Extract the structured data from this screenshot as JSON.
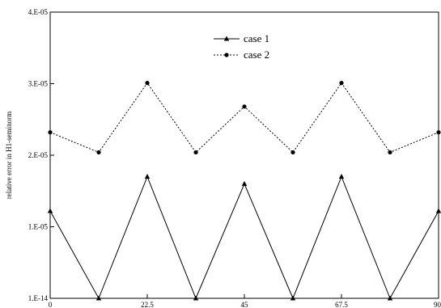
{
  "chart_data": {
    "type": "line",
    "ylabel": "relative error in H1-seminorm",
    "xlabel": "",
    "xlim": [
      0,
      90
    ],
    "ylim": [
      0,
      4e-05
    ],
    "x_ticks": [
      {
        "value": 0,
        "label": "0"
      },
      {
        "value": 22.5,
        "label": "22.5"
      },
      {
        "value": 45,
        "label": "45"
      },
      {
        "value": 67.5,
        "label": "67.5"
      },
      {
        "value": 90,
        "label": "90"
      }
    ],
    "y_ticks": [
      {
        "value": 0,
        "label": "1.E-14"
      },
      {
        "value": 1e-05,
        "label": "1.E-05"
      },
      {
        "value": 2e-05,
        "label": "2.E-05"
      },
      {
        "value": 3e-05,
        "label": "3.E-05"
      },
      {
        "value": 4e-05,
        "label": "4.E-05"
      }
    ],
    "grid": false,
    "legend_position": "top-center",
    "x": [
      0,
      11.25,
      22.5,
      33.75,
      45,
      56.25,
      67.5,
      78.75,
      90
    ],
    "series": [
      {
        "name": "case 1",
        "line_style": "solid",
        "marker": "triangle",
        "color": "#000000",
        "values": [
          1.22e-05,
          0,
          1.7e-05,
          0,
          1.6e-05,
          0,
          1.7e-05,
          0,
          1.22e-05
        ]
      },
      {
        "name": "case 2",
        "line_style": "dotted",
        "marker": "circle",
        "color": "#000000",
        "values": [
          2.32e-05,
          2.04e-05,
          3.01e-05,
          2.04e-05,
          2.68e-05,
          2.04e-05,
          3.01e-05,
          2.04e-05,
          2.32e-05
        ]
      }
    ]
  }
}
